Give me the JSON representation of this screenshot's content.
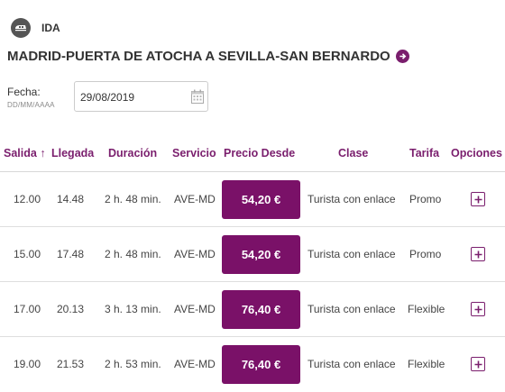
{
  "section": {
    "label": "IDA"
  },
  "route": {
    "title": "MADRID-PUERTA DE ATOCHA A SEVILLA-SAN BERNARDO"
  },
  "date": {
    "label": "Fecha:",
    "format": "DD/MM/AAAA",
    "value": "29/08/2019"
  },
  "table": {
    "headers": {
      "salida": "Salida",
      "salida_sort": "↑",
      "llegada": "Llegada",
      "duracion": "Duración",
      "servicio": "Servicio",
      "precio": "Precio Desde",
      "clase": "Clase",
      "tarifa": "Tarifa",
      "opciones": "Opciones"
    },
    "rows": [
      {
        "salida": "12.00",
        "llegada": "14.48",
        "duracion": "2 h. 48 min.",
        "servicio": "AVE-MD",
        "precio": "54,20 €",
        "clase": "Turista con enlace",
        "tarifa": "Promo"
      },
      {
        "salida": "15.00",
        "llegada": "17.48",
        "duracion": "2 h. 48 min.",
        "servicio": "AVE-MD",
        "precio": "54,20 €",
        "clase": "Turista con enlace",
        "tarifa": "Promo"
      },
      {
        "salida": "17.00",
        "llegada": "20.13",
        "duracion": "3 h. 13 min.",
        "servicio": "AVE-MD",
        "precio": "76,40 €",
        "clase": "Turista con enlace",
        "tarifa": "Flexible"
      },
      {
        "salida": "19.00",
        "llegada": "21.53",
        "duracion": "2 h. 53 min.",
        "servicio": "AVE-MD",
        "precio": "76,40 €",
        "clase": "Turista con enlace",
        "tarifa": "Flexible"
      }
    ]
  },
  "icons": {
    "section": "train-icon",
    "route": "arrow-right-circle-icon",
    "date": "calendar-icon",
    "options": "plus-square-icon"
  },
  "colors": {
    "accent": "#7a1e6d",
    "price_button": "#7a1168",
    "text": "#333333"
  }
}
